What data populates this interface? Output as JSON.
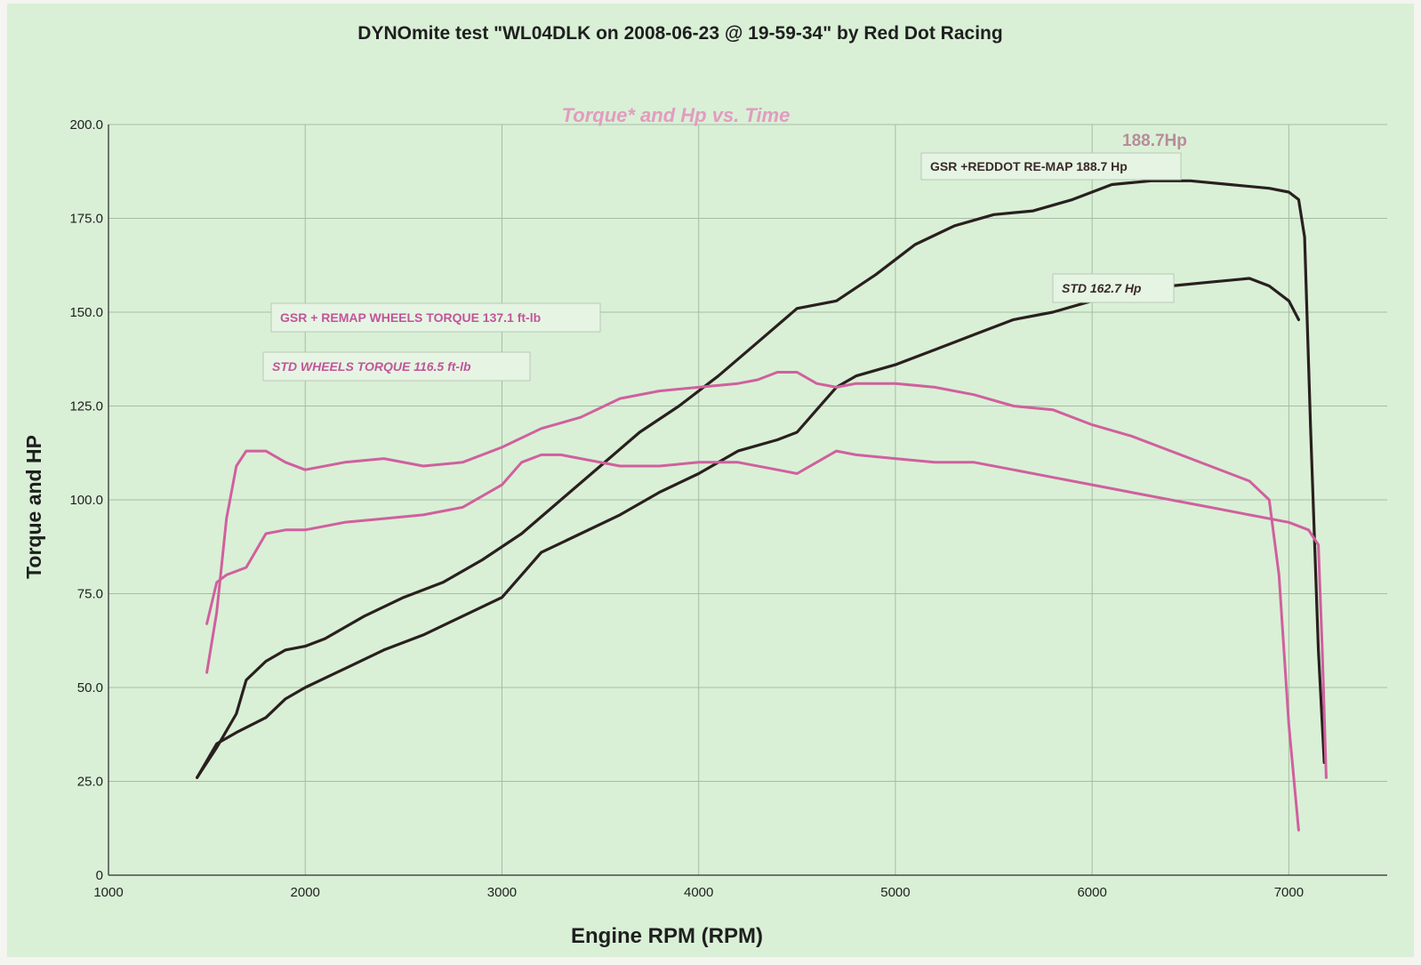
{
  "page_title": "DYNOmite test \"WL04DLK on 2008-06-23 @ 19-59-34\" by Red Dot Racing",
  "chart_data": {
    "type": "line",
    "title": "DYNOmite test \"WL04DLK on 2008-06-23 @ 19-59-34\" by Red Dot Racing",
    "subtitle": "Torque* and Hp vs. Time",
    "xlabel": "Engine RPM (RPM)",
    "ylabel": "Torque and HP",
    "xlim": [
      1000,
      7500
    ],
    "ylim": [
      0,
      200
    ],
    "x_ticks": [
      1000,
      2000,
      3000,
      4000,
      5000,
      6000,
      7000
    ],
    "x_tick_labels": [
      "1000",
      "2000",
      "3000",
      "4000",
      "5000",
      "6000",
      "7000"
    ],
    "y_ticks": [
      0,
      25,
      50,
      75,
      100,
      125,
      150,
      175,
      200
    ],
    "y_tick_labels": [
      "0",
      "25.0",
      "50.0",
      "75.0",
      "100.0",
      "125.0",
      "150.0",
      "175.0",
      "200.0"
    ],
    "grid": true,
    "colors": {
      "background": "#d9f0d6",
      "grid": "#a7bba5",
      "hp_series": "#2a1f1f",
      "torque_series": "#d0609e",
      "label_text_hp": "#3a2a2a",
      "label_text_torque": "#c2559a",
      "subtitle": "#e29cc0",
      "peak_text": "#b98b9b"
    },
    "annotations": [
      {
        "text": "GSR +REDDOT RE-MAP 188.7 Hp",
        "series": "GSR +REDDOT RE-MAP 188.7 Hp"
      },
      {
        "text": "STD 162.7 Hp",
        "series": "STD 162.7 Hp"
      },
      {
        "text": "GSR + REMAP WHEELS TORQUE 137.1 ft-lb",
        "series": "GSR + REMAP WHEELS TORQUE 137.1 ft-lb"
      },
      {
        "text": "STD WHEELS TORQUE 116.5 ft-lb",
        "series": "STD WHEELS TORQUE 116.5 ft-lb"
      },
      {
        "text": "188.7Hp",
        "series": "GSR +REDDOT RE-MAP 188.7 Hp"
      }
    ],
    "series": [
      {
        "name": "GSR +REDDOT RE-MAP 188.7 Hp",
        "kind": "hp",
        "points": [
          [
            1450,
            26
          ],
          [
            1550,
            34
          ],
          [
            1650,
            43
          ],
          [
            1700,
            52
          ],
          [
            1800,
            57
          ],
          [
            1900,
            60
          ],
          [
            2000,
            61
          ],
          [
            2100,
            63
          ],
          [
            2300,
            69
          ],
          [
            2500,
            74
          ],
          [
            2700,
            78
          ],
          [
            2900,
            84
          ],
          [
            3100,
            91
          ],
          [
            3300,
            100
          ],
          [
            3500,
            109
          ],
          [
            3700,
            118
          ],
          [
            3900,
            125
          ],
          [
            4100,
            133
          ],
          [
            4300,
            142
          ],
          [
            4500,
            151
          ],
          [
            4700,
            153
          ],
          [
            4900,
            160
          ],
          [
            5100,
            168
          ],
          [
            5300,
            173
          ],
          [
            5500,
            176
          ],
          [
            5700,
            177
          ],
          [
            5900,
            180
          ],
          [
            6100,
            184
          ],
          [
            6300,
            185
          ],
          [
            6500,
            185
          ],
          [
            6700,
            184
          ],
          [
            6900,
            183
          ],
          [
            7000,
            182
          ],
          [
            7050,
            180
          ],
          [
            7080,
            170
          ],
          [
            7110,
            120
          ],
          [
            7150,
            60
          ],
          [
            7180,
            30
          ]
        ]
      },
      {
        "name": "STD 162.7 Hp",
        "kind": "hp",
        "points": [
          [
            1450,
            26
          ],
          [
            1550,
            35
          ],
          [
            1650,
            38
          ],
          [
            1800,
            42
          ],
          [
            1900,
            47
          ],
          [
            2000,
            50
          ],
          [
            2200,
            55
          ],
          [
            2400,
            60
          ],
          [
            2600,
            64
          ],
          [
            2800,
            69
          ],
          [
            3000,
            74
          ],
          [
            3200,
            86
          ],
          [
            3400,
            91
          ],
          [
            3600,
            96
          ],
          [
            3800,
            102
          ],
          [
            4000,
            107
          ],
          [
            4200,
            113
          ],
          [
            4400,
            116
          ],
          [
            4500,
            118
          ],
          [
            4600,
            124
          ],
          [
            4700,
            130
          ],
          [
            4800,
            133
          ],
          [
            5000,
            136
          ],
          [
            5200,
            140
          ],
          [
            5400,
            144
          ],
          [
            5600,
            148
          ],
          [
            5800,
            150
          ],
          [
            6000,
            153
          ],
          [
            6200,
            156
          ],
          [
            6400,
            157
          ],
          [
            6600,
            158
          ],
          [
            6800,
            159
          ],
          [
            6900,
            157
          ],
          [
            7000,
            153
          ],
          [
            7050,
            148
          ]
        ]
      },
      {
        "name": "GSR + REMAP WHEELS TORQUE 137.1 ft-lb",
        "kind": "torque",
        "points": [
          [
            1500,
            54
          ],
          [
            1550,
            70
          ],
          [
            1600,
            95
          ],
          [
            1650,
            109
          ],
          [
            1700,
            113
          ],
          [
            1800,
            113
          ],
          [
            1900,
            110
          ],
          [
            2000,
            108
          ],
          [
            2200,
            110
          ],
          [
            2400,
            111
          ],
          [
            2600,
            109
          ],
          [
            2800,
            110
          ],
          [
            3000,
            114
          ],
          [
            3200,
            119
          ],
          [
            3400,
            122
          ],
          [
            3600,
            127
          ],
          [
            3800,
            129
          ],
          [
            4000,
            130
          ],
          [
            4200,
            131
          ],
          [
            4300,
            132
          ],
          [
            4400,
            134
          ],
          [
            4500,
            134
          ],
          [
            4600,
            131
          ],
          [
            4700,
            130
          ],
          [
            4800,
            131
          ],
          [
            5000,
            131
          ],
          [
            5200,
            130
          ],
          [
            5400,
            128
          ],
          [
            5600,
            125
          ],
          [
            5800,
            124
          ],
          [
            6000,
            120
          ],
          [
            6200,
            117
          ],
          [
            6400,
            113
          ],
          [
            6600,
            109
          ],
          [
            6800,
            105
          ],
          [
            6900,
            100
          ],
          [
            6950,
            80
          ],
          [
            7000,
            40
          ],
          [
            7050,
            12
          ]
        ]
      },
      {
        "name": "STD WHEELS TORQUE 116.5 ft-lb",
        "kind": "torque",
        "points": [
          [
            1500,
            67
          ],
          [
            1550,
            78
          ],
          [
            1600,
            80
          ],
          [
            1700,
            82
          ],
          [
            1800,
            91
          ],
          [
            1900,
            92
          ],
          [
            2000,
            92
          ],
          [
            2200,
            94
          ],
          [
            2400,
            95
          ],
          [
            2600,
            96
          ],
          [
            2800,
            98
          ],
          [
            3000,
            104
          ],
          [
            3100,
            110
          ],
          [
            3200,
            112
          ],
          [
            3300,
            112
          ],
          [
            3400,
            111
          ],
          [
            3600,
            109
          ],
          [
            3800,
            109
          ],
          [
            4000,
            110
          ],
          [
            4200,
            110
          ],
          [
            4400,
            108
          ],
          [
            4500,
            107
          ],
          [
            4600,
            110
          ],
          [
            4700,
            113
          ],
          [
            4800,
            112
          ],
          [
            5000,
            111
          ],
          [
            5200,
            110
          ],
          [
            5400,
            110
          ],
          [
            5600,
            108
          ],
          [
            5800,
            106
          ],
          [
            6000,
            104
          ],
          [
            6200,
            102
          ],
          [
            6400,
            100
          ],
          [
            6600,
            98
          ],
          [
            6800,
            96
          ],
          [
            7000,
            94
          ],
          [
            7100,
            92
          ],
          [
            7150,
            88
          ],
          [
            7170,
            60
          ],
          [
            7190,
            26
          ]
        ]
      }
    ]
  }
}
